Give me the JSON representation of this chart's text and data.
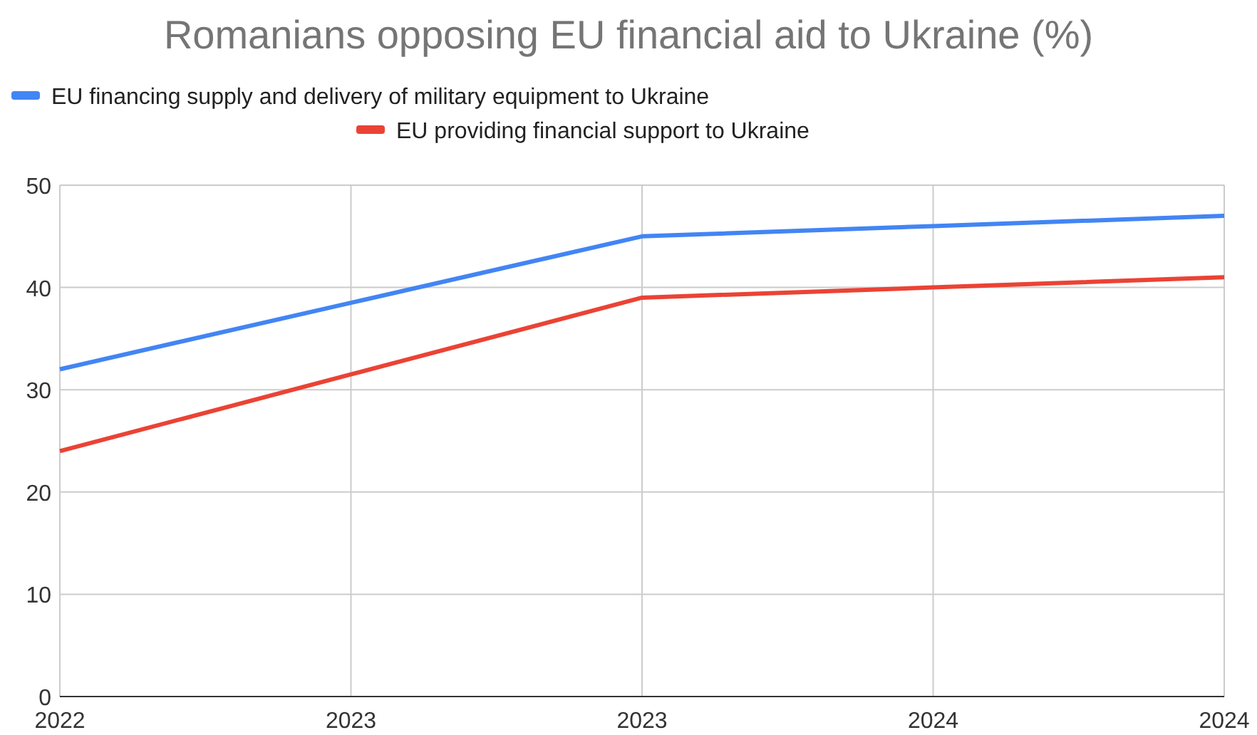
{
  "chart_data": {
    "type": "line",
    "title": "Romanians opposing EU financial aid to Ukraine (%)",
    "categories": [
      "2022",
      "2023",
      "2023",
      "2024",
      "2024"
    ],
    "series": [
      {
        "name": "EU financing supply and delivery of military equipment to Ukraine",
        "color": "#4285f4",
        "values": [
          32,
          38.5,
          45,
          46,
          47
        ]
      },
      {
        "name": "EU providing financial support to Ukraine",
        "color": "#ea4335",
        "values": [
          24,
          31.5,
          39,
          40,
          41
        ]
      }
    ],
    "ylim": [
      0,
      50
    ],
    "yticks": [
      0,
      10,
      20,
      30,
      40,
      50
    ],
    "grid": true,
    "legend": "top",
    "marker": "none",
    "line_style": "solid"
  }
}
